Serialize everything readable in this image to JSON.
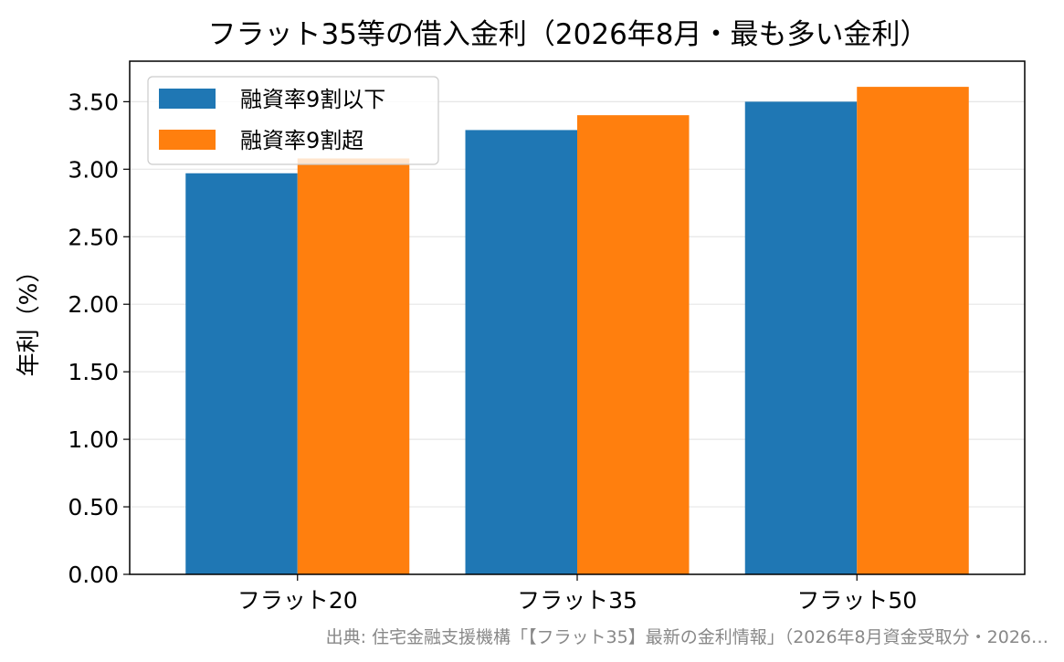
{
  "chart_data": {
    "type": "bar",
    "title": "フラット35等の借入金利（2026年8月・最も多い金利）",
    "xlabel": "",
    "ylabel": "年利（%）",
    "categories": [
      "フラット20",
      "フラット35",
      "フラット50"
    ],
    "series": [
      {
        "name": "融資率9割以下",
        "values": [
          2.97,
          3.29,
          3.5
        ],
        "color": "#1f77b4"
      },
      {
        "name": "融資率9割超",
        "values": [
          3.08,
          3.4,
          3.61
        ],
        "color": "#ff7f0e"
      }
    ],
    "ylim": [
      0,
      3.8
    ],
    "yticks": [
      "0.00",
      "0.50",
      "1.00",
      "1.50",
      "2.00",
      "2.50",
      "3.00",
      "3.50"
    ],
    "ytick_values": [
      0,
      0.5,
      1.0,
      1.5,
      2.0,
      2.5,
      3.0,
      3.5
    ],
    "grid": "horizontal",
    "legend_position": "top-left"
  },
  "source_text": "出典: 住宅金融支援機構「【フラット35】最新の金利情報」（2026年8月資金受取分・2026…"
}
